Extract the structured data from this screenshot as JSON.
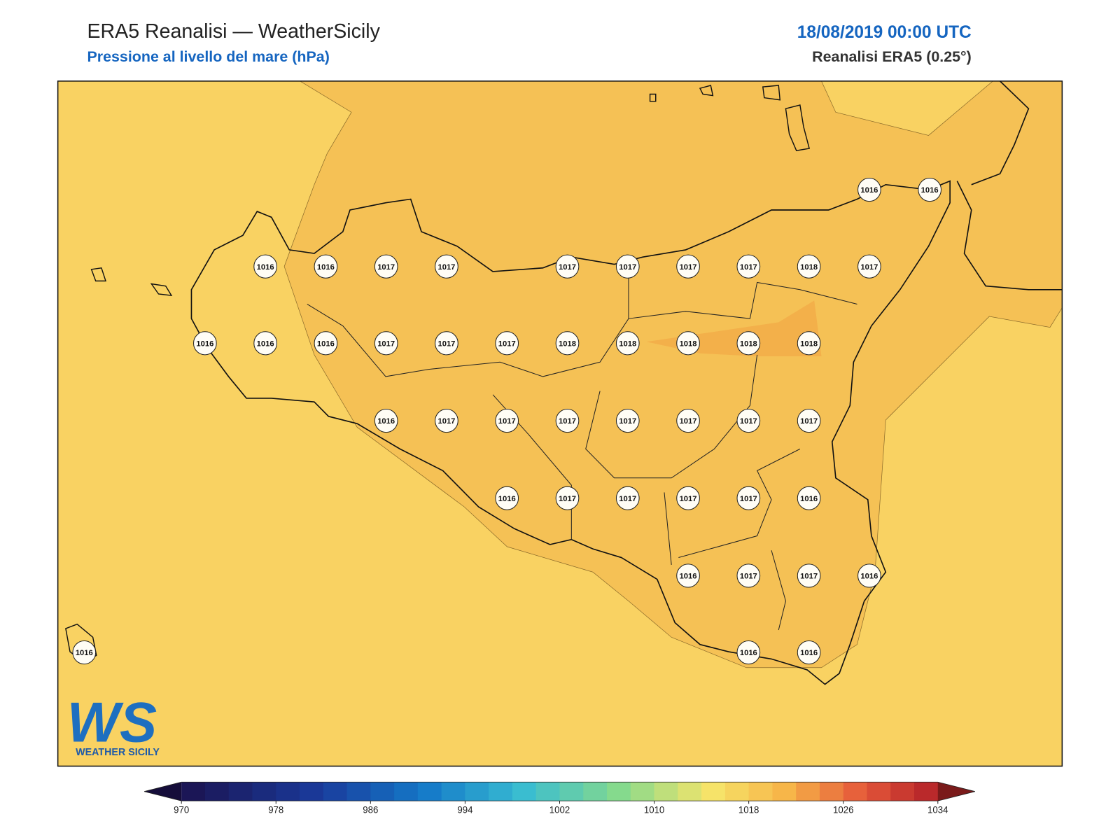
{
  "header": {
    "title": "ERA5 Reanalisi — WeatherSicily",
    "subtitle": "Pressione al livello del mare (hPa)",
    "date": "18/08/2019 00:00 UTC",
    "model": "Reanalisi ERA5 (0.25°)"
  },
  "map": {
    "labels": [
      1016,
      1016,
      1016,
      1016,
      1017,
      1017,
      1017,
      1017,
      1017,
      1017,
      1018,
      1017,
      1016,
      1016,
      1016,
      1017,
      1017,
      1017,
      1018,
      1018,
      1018,
      1018,
      1018,
      1016,
      1017,
      1017,
      1017,
      1017,
      1017,
      1017,
      1017,
      1016,
      1017,
      1017,
      1017,
      1017,
      1016,
      1016,
      1017,
      1017,
      1016,
      1016,
      1016,
      1016
    ]
  },
  "colorbar": {
    "ticks": [
      970,
      978,
      986,
      994,
      1002,
      1010,
      1018,
      1026,
      1034
    ]
  },
  "logo": {
    "mark": "WS",
    "text": "WEATHER SICILY"
  }
}
